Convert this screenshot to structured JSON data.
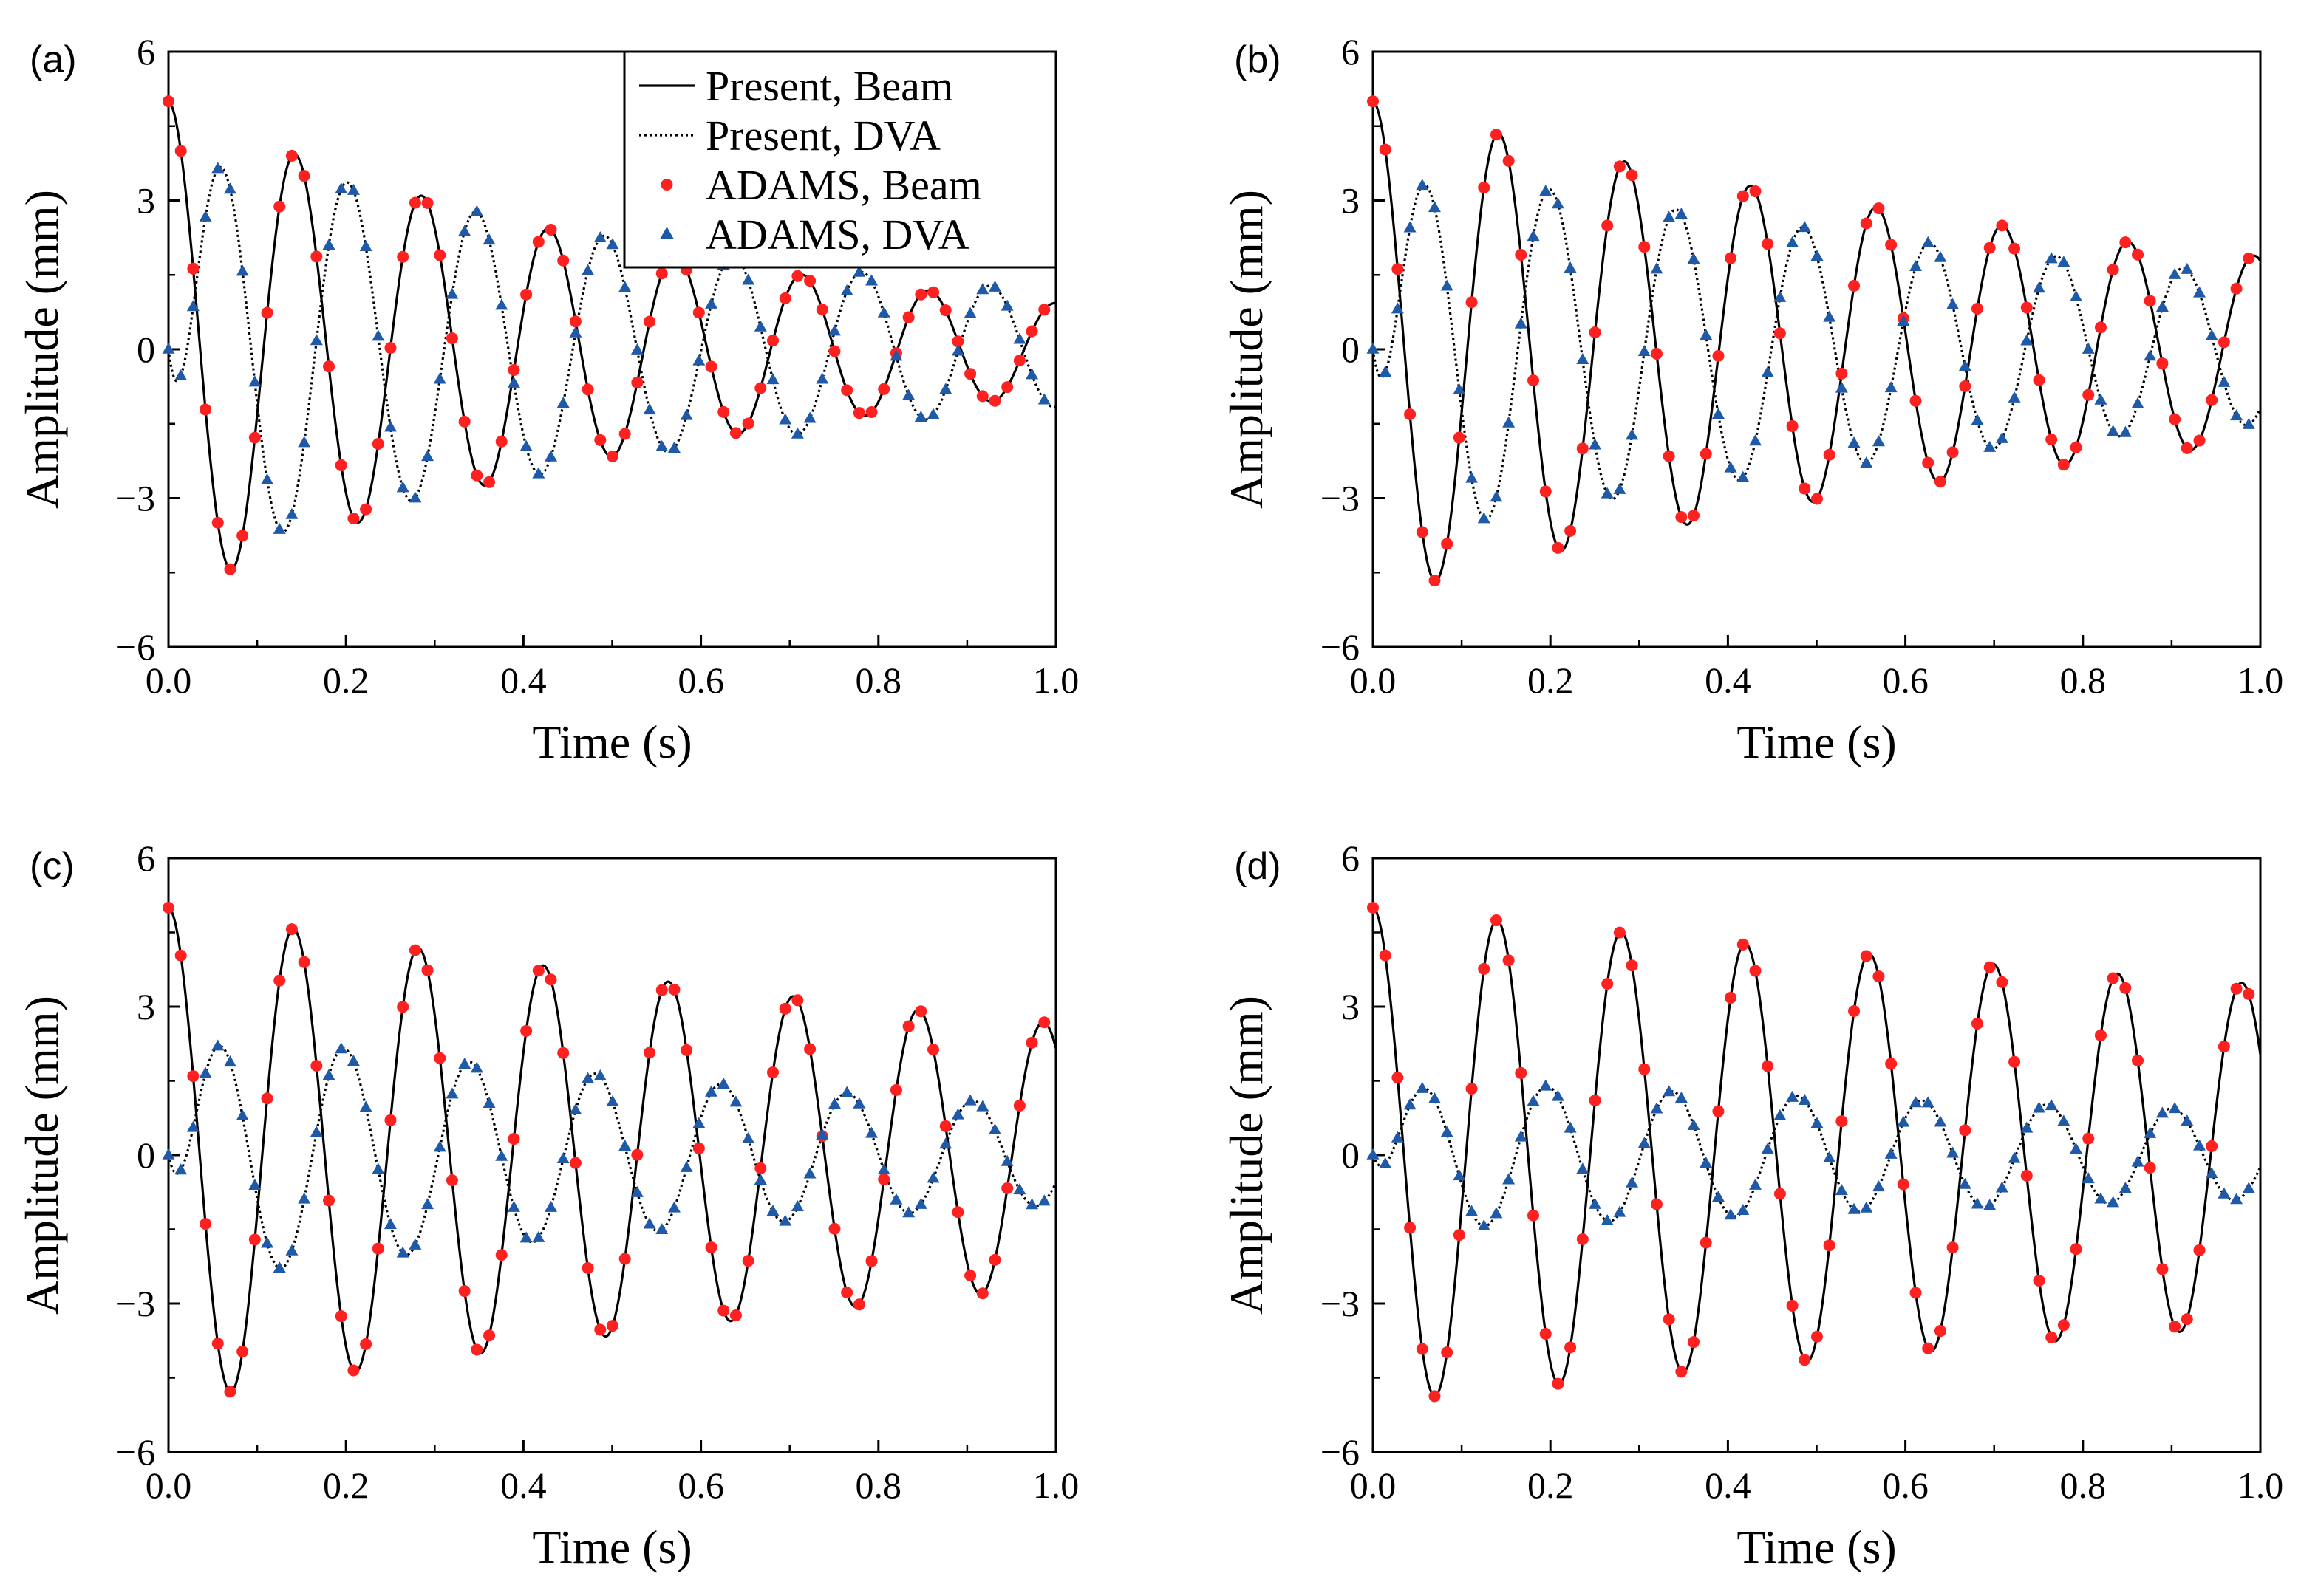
{
  "figure": {
    "xlabel": "Time (s)",
    "ylabel": "Amplitude (mm)",
    "x_ticks": [
      "0.0",
      "0.2",
      "0.4",
      "0.6",
      "0.8",
      "1.0"
    ],
    "y_ticks": [
      "6",
      "3",
      "0",
      "−3",
      "−6"
    ],
    "legend": [
      {
        "label": "Present, Beam",
        "style": "solid"
      },
      {
        "label": "Present, DVA",
        "style": "dotted"
      },
      {
        "label": "ADAMS, Beam",
        "style": "red-circle"
      },
      {
        "label": "ADAMS, DVA",
        "style": "blue-triangle"
      }
    ],
    "colors": {
      "beam_line": "#000000",
      "dva_line": "#000000",
      "adams_beam": "#ff2020",
      "adams_dva": "#1f5aa8"
    }
  },
  "chart_data": [
    {
      "panel": "(a)",
      "type": "line",
      "xlabel": "Time (s)",
      "ylabel": "Amplitude (mm)",
      "xlim": [
        0,
        1
      ],
      "ylim": [
        -6,
        6
      ],
      "series": [
        {
          "name": "Present, Beam",
          "amplitude": 5.0,
          "frequency_hz": 7.0,
          "decay": 1.68,
          "phase": "cos"
        },
        {
          "name": "Present, DVA",
          "amplitude": 4.4,
          "frequency_hz": 6.9,
          "decay": 1.33,
          "phase": "sin-lag"
        },
        {
          "name": "ADAMS, Beam",
          "markers": "sampled from Present, Beam at dt = 0.0139 s"
        },
        {
          "name": "ADAMS, DVA",
          "markers": "sampled from Present, DVA at dt = 0.0139 s"
        }
      ],
      "legend_position": "top-right"
    },
    {
      "panel": "(b)",
      "type": "line",
      "xlabel": "Time (s)",
      "ylabel": "Amplitude (mm)",
      "xlim": [
        0,
        1
      ],
      "ylim": [
        -6,
        6
      ],
      "series": [
        {
          "name": "Present, Beam",
          "amplitude": 5.0,
          "frequency_hz": 7.05,
          "decay": 0.98,
          "phase": "cos"
        },
        {
          "name": "Present, DVA",
          "amplitude": 3.9,
          "frequency_hz": 7.0,
          "decay": 0.95,
          "phase": "sin-lag"
        },
        {
          "name": "ADAMS, Beam",
          "markers": "sampled from Present, Beam at dt = 0.0139 s"
        },
        {
          "name": "ADAMS, DVA",
          "markers": "sampled from Present, DVA at dt = 0.0139 s"
        }
      ]
    },
    {
      "panel": "(c)",
      "type": "line",
      "xlabel": "Time (s)",
      "ylabel": "Amplitude (mm)",
      "xlim": [
        0,
        1
      ],
      "ylim": [
        -6,
        6
      ],
      "series": [
        {
          "name": "Present, Beam",
          "amplitude": 5.0,
          "frequency_hz": 7.1,
          "decay": 0.63,
          "phase": "cos"
        },
        {
          "name": "Present, DVA",
          "amplitude": 2.6,
          "frequency_hz": 7.05,
          "decay": 0.95,
          "phase": "sin-lag"
        },
        {
          "name": "ADAMS, Beam",
          "markers": "sampled from Present, Beam at dt = 0.0139 s"
        },
        {
          "name": "ADAMS, DVA",
          "markers": "sampled from Present, DVA at dt = 0.0139 s"
        }
      ]
    },
    {
      "panel": "(d)",
      "type": "line",
      "xlabel": "Time (s)",
      "ylabel": "Amplitude (mm)",
      "xlim": [
        0,
        1
      ],
      "ylim": [
        -6,
        6
      ],
      "series": [
        {
          "name": "Present, Beam",
          "amplitude": 5.0,
          "frequency_hz": 7.15,
          "decay": 0.37,
          "phase": "cos"
        },
        {
          "name": "Present, DVA",
          "amplitude": 1.55,
          "frequency_hz": 7.1,
          "decay": 0.55,
          "phase": "sin-lag"
        },
        {
          "name": "ADAMS, Beam",
          "markers": "sampled from Present, Beam at dt = 0.0139 s"
        },
        {
          "name": "ADAMS, DVA",
          "markers": "sampled from Present, DVA at dt = 0.0139 s"
        }
      ]
    }
  ]
}
